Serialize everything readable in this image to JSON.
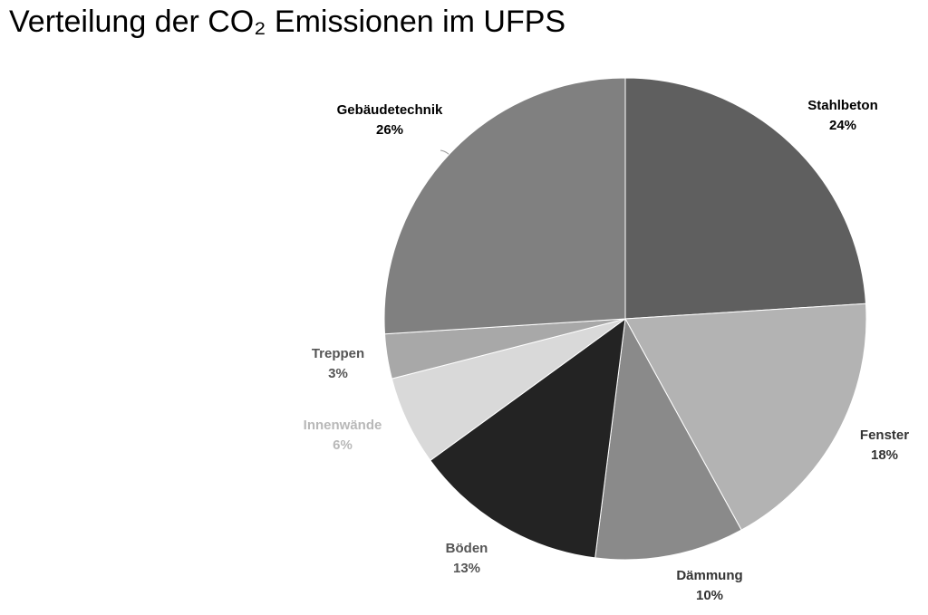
{
  "chart_data": {
    "type": "pie",
    "title": "Verteilung der CO₂ Emissionen im UFPS",
    "categories": [
      "Stahlbeton",
      "Fenster",
      "Dämmung",
      "Böden",
      "Innenwände",
      "Treppen",
      "Gebäudetechnik"
    ],
    "values": [
      24,
      18,
      10,
      13,
      6,
      3,
      26
    ],
    "value_labels": [
      "24%",
      "18%",
      "10%",
      "13%",
      "6%",
      "3%",
      "26%"
    ],
    "colors": [
      "#5f5f5f",
      "#b3b3b3",
      "#8a8a8a",
      "#232323",
      "#d9d9d9",
      "#a8a8a8",
      "#808080"
    ],
    "label_colors": [
      "#000000",
      "#333333",
      "#333333",
      "#555555",
      "#b8b8b8",
      "#555555",
      "#000000"
    ]
  }
}
